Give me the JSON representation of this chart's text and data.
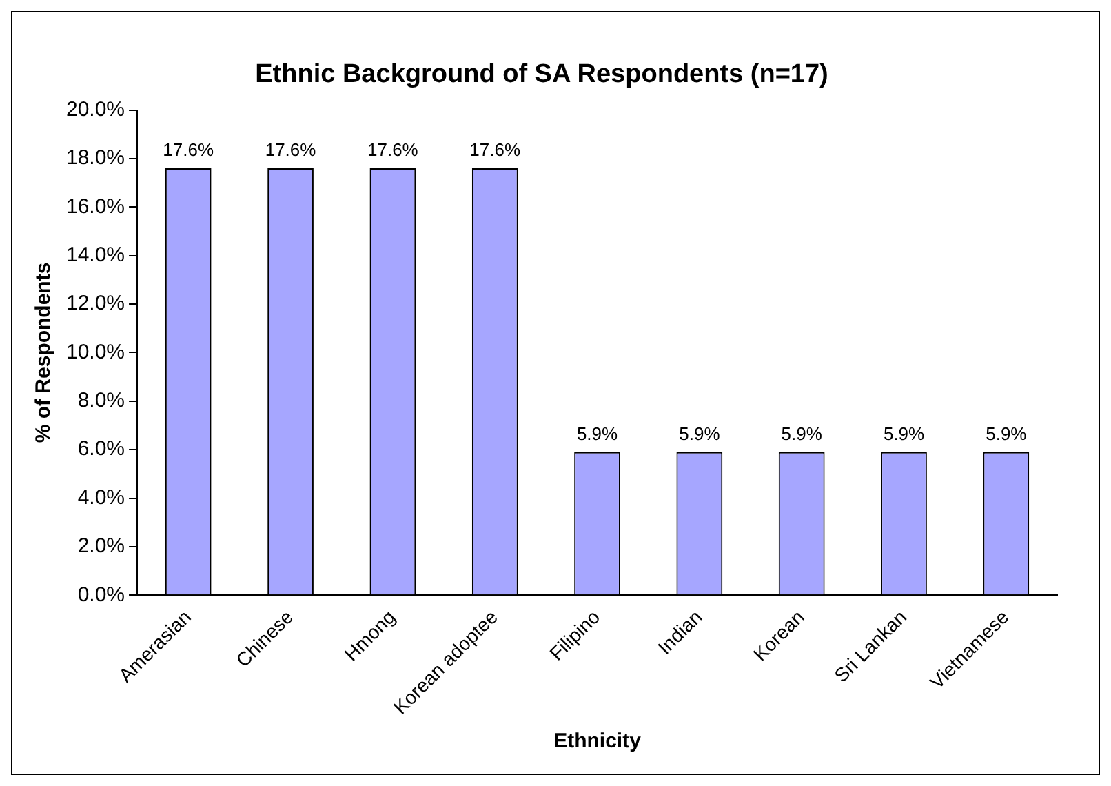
{
  "chart_data": {
    "type": "bar",
    "title": "Ethnic Background of SA Respondents (n=17)",
    "xlabel": "Ethnicity",
    "ylabel": "% of Respondents",
    "categories": [
      "Amerasian",
      "Chinese",
      "Hmong",
      "Korean adoptee",
      "Filipino",
      "Indian",
      "Korean",
      "Sri Lankan",
      "Vietnamese"
    ],
    "values": [
      17.6,
      17.6,
      17.6,
      17.6,
      5.9,
      5.9,
      5.9,
      5.9,
      5.9
    ],
    "value_labels": [
      "17.6%",
      "17.6%",
      "17.6%",
      "17.6%",
      "5.9%",
      "5.9%",
      "5.9%",
      "5.9%",
      "5.9%"
    ],
    "color": "#a6a6ff",
    "ylim": [
      0,
      20
    ],
    "yticks": [
      {
        "value": 0,
        "label": "0.0%"
      },
      {
        "value": 2,
        "label": "2.0%"
      },
      {
        "value": 4,
        "label": "4.0%"
      },
      {
        "value": 6,
        "label": "6.0%"
      },
      {
        "value": 8,
        "label": "8.0%"
      },
      {
        "value": 10,
        "label": "10.0%"
      },
      {
        "value": 12,
        "label": "12.0%"
      },
      {
        "value": 14,
        "label": "14.0%"
      },
      {
        "value": 16,
        "label": "16.0%"
      },
      {
        "value": 18,
        "label": "18.0%"
      },
      {
        "value": 20,
        "label": "20.0%"
      }
    ],
    "grid": false,
    "legend": false
  }
}
